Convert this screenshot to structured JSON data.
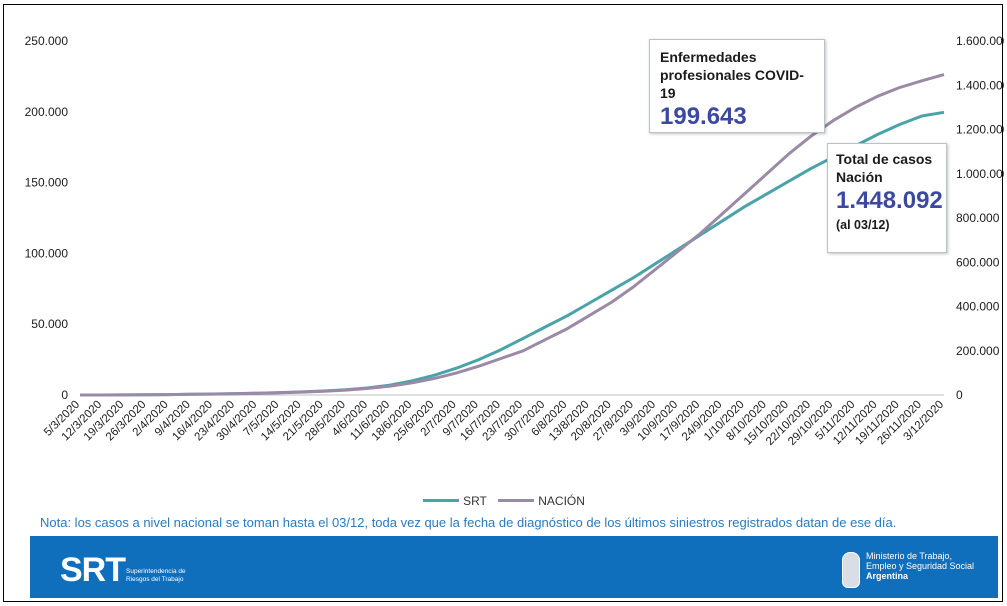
{
  "chart_data": {
    "type": "line",
    "x": [
      "5/3/2020",
      "12/3/2020",
      "19/3/2020",
      "26/3/2020",
      "2/4/2020",
      "9/4/2020",
      "16/4/2020",
      "23/4/2020",
      "30/4/2020",
      "7/5/2020",
      "14/5/2020",
      "21/5/2020",
      "28/5/2020",
      "4/6/2020",
      "11/6/2020",
      "18/6/2020",
      "25/6/2020",
      "2/7/2020",
      "9/7/2020",
      "16/7/2020",
      "23/7/2020",
      "30/7/2020",
      "6/8/2020",
      "13/8/2020",
      "20/8/2020",
      "27/8/2020",
      "3/9/2020",
      "10/9/2020",
      "17/9/2020",
      "24/9/2020",
      "1/10/2020",
      "8/10/2020",
      "15/10/2020",
      "22/10/2020",
      "29/10/2020",
      "5/11/2020",
      "12/11/2020",
      "19/11/2020",
      "26/11/2020",
      "3/12/2020"
    ],
    "series": [
      {
        "name": "SRT",
        "axis": "left",
        "color": "#4aa3a9",
        "values": [
          0,
          0,
          100,
          200,
          300,
          500,
          700,
          1000,
          1300,
          1700,
          2200,
          2800,
          3700,
          5000,
          7000,
          10000,
          14000,
          19000,
          25000,
          32000,
          40000,
          48000,
          56000,
          65000,
          74000,
          83000,
          93000,
          103000,
          113000,
          123000,
          133000,
          142000,
          151000,
          160000,
          168000,
          176000,
          184000,
          191000,
          197000,
          199643
        ]
      },
      {
        "name": "NACIÓN",
        "axis": "right",
        "color": "#9b8aa6",
        "values": [
          0,
          0,
          500,
          1000,
          2000,
          3000,
          4000,
          6000,
          8000,
          10000,
          13000,
          17000,
          22000,
          30000,
          40000,
          55000,
          75000,
          100000,
          130000,
          165000,
          200000,
          250000,
          300000,
          360000,
          420000,
          490000,
          570000,
          650000,
          730000,
          820000,
          910000,
          1000000,
          1090000,
          1170000,
          1240000,
          1300000,
          1350000,
          1390000,
          1420000,
          1448092
        ]
      }
    ],
    "ylim_left": [
      0,
      250000
    ],
    "ylim_right": [
      0,
      1600000
    ],
    "yticks_left": [
      "0",
      "50.000",
      "100.000",
      "150.000",
      "200.000",
      "250.000"
    ],
    "yticks_right": [
      "0",
      "200.000",
      "400.000",
      "600.000",
      "800.000",
      "1.000.000",
      "1.200.000",
      "1.400.000",
      "1.600.000"
    ],
    "legend_position": "bottom",
    "grid": false,
    "annotations": [
      {
        "label": "Enfermedades profesionales  COVID-19",
        "value": "199.643"
      },
      {
        "label": "Total de casos Nación",
        "value": "1.448.092",
        "sub": "(al 03/12)"
      }
    ]
  },
  "callout_srt": {
    "line1": "Enfermedades",
    "line2": "profesionales  COVID-19",
    "value": "199.643"
  },
  "callout_nacion": {
    "line1": "Total de casos",
    "line2": "Nación",
    "value": "1.448.092",
    "sub": "(al 03/12)"
  },
  "legend": {
    "srt": "SRT",
    "nacion": "NACIÓN"
  },
  "note": "Nota: los casos a nivel nacional se toman hasta el 03/12, toda vez que la fecha de diagnóstico de los últimos siniestros registrados datan de ese día.",
  "footer": {
    "logo_text": "SRT",
    "logo_sub": "Superintendencia de Riesgos del Trabajo",
    "ministry_line1": "Ministerio de Trabajo,",
    "ministry_line2": "Empleo y Seguridad Social",
    "ministry_line3": "Argentina"
  },
  "colors": {
    "srt": "#4aa3a9",
    "nacion": "#9b8aa6",
    "accent_blue": "#3b49a0",
    "footer": "#0f6fbd",
    "note": "#2a7abf"
  },
  "icons": [
    "argentina-coat-of-arms-icon",
    "srt-logo-icon"
  ]
}
